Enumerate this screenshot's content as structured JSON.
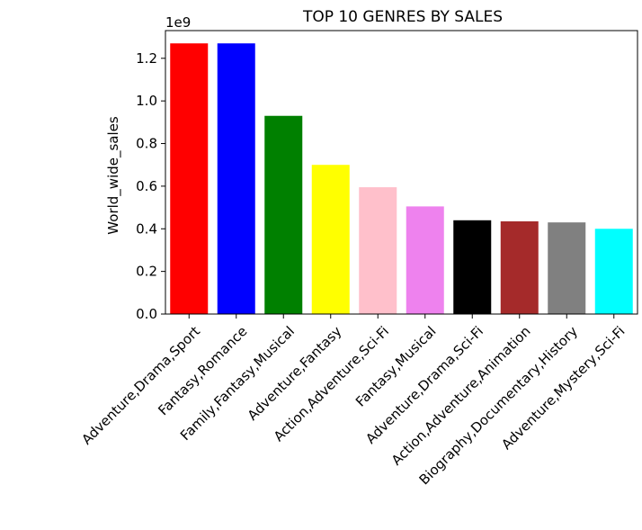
{
  "chart_data": {
    "type": "bar",
    "title": "TOP 10 GENRES BY SALES",
    "xlabel": "",
    "ylabel": "World_wide_sales",
    "offset_text": "1e9",
    "categories": [
      "Adventure,Drama,Sport",
      "Fantasy,Romance",
      "Family,Fantasy,Musical",
      "Adventure,Fantasy",
      "Action,Adventure,Sci-Fi",
      "Fantasy,Musical",
      "Adventure,Drama,Sci-Fi",
      "Action,Adventure,Animation",
      "Biography,Documentary,History",
      "Adventure,Mystery,Sci-Fi"
    ],
    "values": [
      1.27,
      1.27,
      0.93,
      0.7,
      0.595,
      0.505,
      0.44,
      0.435,
      0.43,
      0.4
    ],
    "colors": [
      "#ff0000",
      "#0000ff",
      "#008000",
      "#ffff00",
      "#ffc0cb",
      "#ee82ee",
      "#000000",
      "#a52a2a",
      "#808080",
      "#00ffff"
    ],
    "yticks": [
      "0.0",
      "0.2",
      "0.4",
      "0.6",
      "0.8",
      "1.0",
      "1.2"
    ],
    "ylim": [
      0,
      1.33
    ],
    "grid": false
  }
}
